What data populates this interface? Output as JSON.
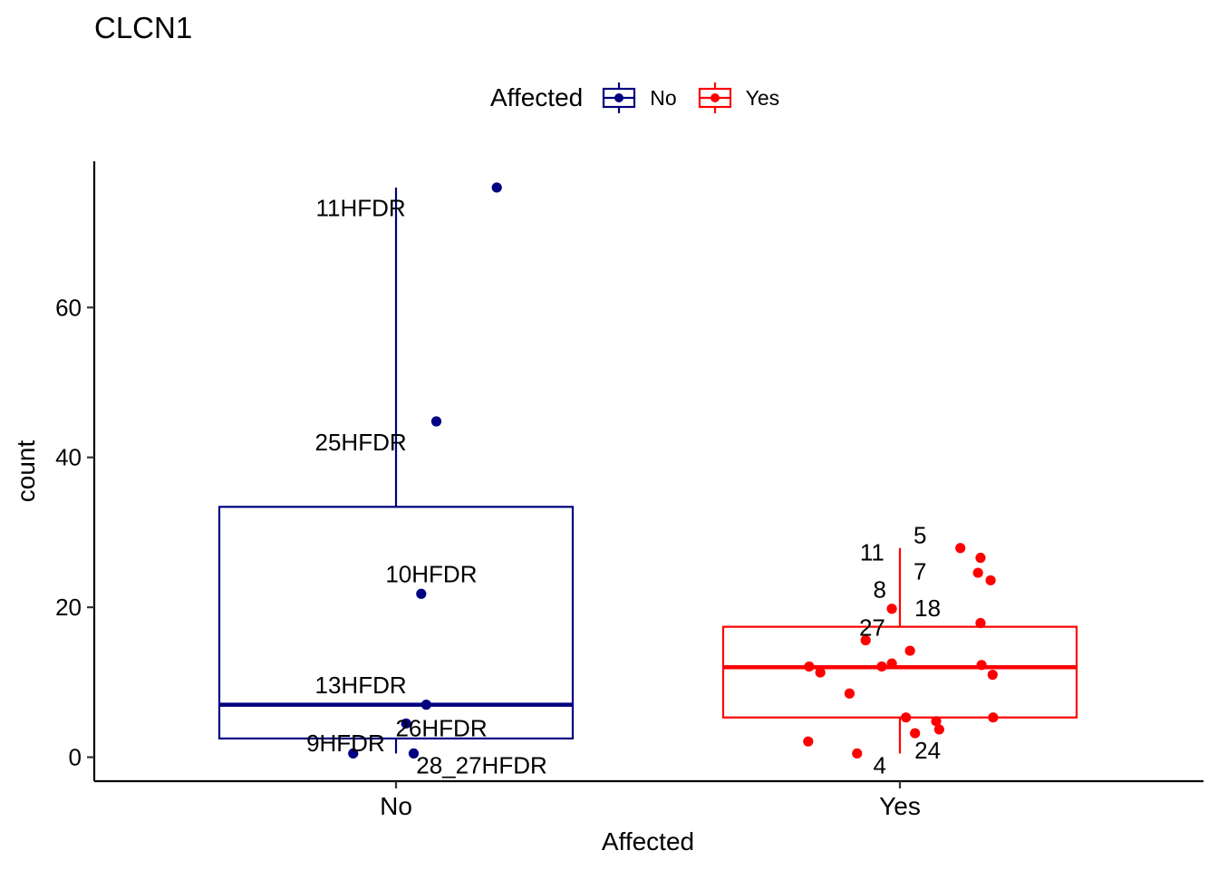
{
  "chart_data": {
    "type": "box",
    "title": "CLCN1",
    "xlabel": "Affected",
    "ylabel": "count",
    "categories": [
      "No",
      "Yes"
    ],
    "ylim": [
      -3.2,
      79.5
    ],
    "yticks": [
      0,
      20,
      40,
      60
    ],
    "grid": false,
    "legend": {
      "title": "Affected",
      "position": "top",
      "entries": [
        {
          "label": "No",
          "color": "#000080"
        },
        {
          "label": "Yes",
          "color": "#ff0000"
        }
      ]
    },
    "boxes": [
      {
        "category": "No",
        "color": "#000080",
        "lower_whisker": 0.5,
        "q1": 2.5,
        "median": 7,
        "q3": 33.4,
        "upper_whisker": 76
      },
      {
        "category": "Yes",
        "color": "#ff0000",
        "lower_whisker": 0.5,
        "q1": 5.3,
        "median": 12,
        "q3": 17.4,
        "upper_whisker": 27.9
      }
    ],
    "points": [
      {
        "group": "No",
        "jitter": 0.2,
        "y": 76
      },
      {
        "group": "No",
        "jitter": 0.08,
        "y": 44.8
      },
      {
        "group": "No",
        "jitter": 0.05,
        "y": 21.8
      },
      {
        "group": "No",
        "jitter": 0.06,
        "y": 7
      },
      {
        "group": "No",
        "jitter": 0.02,
        "y": 4.5
      },
      {
        "group": "No",
        "jitter": -0.085,
        "y": 0.5
      },
      {
        "group": "No",
        "jitter": 0.035,
        "y": 0.5
      },
      {
        "group": "Yes",
        "jitter": 0.12,
        "y": 27.9
      },
      {
        "group": "Yes",
        "jitter": 0.16,
        "y": 26.6
      },
      {
        "group": "Yes",
        "jitter": 0.155,
        "y": 24.6
      },
      {
        "group": "Yes",
        "jitter": 0.18,
        "y": 23.6
      },
      {
        "group": "Yes",
        "jitter": -0.016,
        "y": 19.8
      },
      {
        "group": "Yes",
        "jitter": 0.16,
        "y": 17.9
      },
      {
        "group": "Yes",
        "jitter": -0.068,
        "y": 15.6
      },
      {
        "group": "Yes",
        "jitter": 0.02,
        "y": 14.2
      },
      {
        "group": "Yes",
        "jitter": -0.016,
        "y": 12.5
      },
      {
        "group": "Yes",
        "jitter": 0.162,
        "y": 12.3
      },
      {
        "group": "Yes",
        "jitter": -0.036,
        "y": 12.1
      },
      {
        "group": "Yes",
        "jitter": -0.18,
        "y": 12.1
      },
      {
        "group": "Yes",
        "jitter": -0.158,
        "y": 11.3
      },
      {
        "group": "Yes",
        "jitter": 0.184,
        "y": 11
      },
      {
        "group": "Yes",
        "jitter": -0.1,
        "y": 8.5
      },
      {
        "group": "Yes",
        "jitter": 0.185,
        "y": 5.3
      },
      {
        "group": "Yes",
        "jitter": 0.012,
        "y": 5.3
      },
      {
        "group": "Yes",
        "jitter": 0.072,
        "y": 4.8
      },
      {
        "group": "Yes",
        "jitter": 0.078,
        "y": 3.7
      },
      {
        "group": "Yes",
        "jitter": 0.03,
        "y": 3.2
      },
      {
        "group": "Yes",
        "jitter": -0.182,
        "y": 2.1
      },
      {
        "group": "Yes",
        "jitter": -0.085,
        "y": 0.5
      }
    ],
    "annotations": [
      {
        "group": "No",
        "xoff": -0.07,
        "y": 73.3,
        "text": "11HFDR"
      },
      {
        "group": "No",
        "xoff": -0.07,
        "y": 42,
        "text": "25HFDR"
      },
      {
        "group": "No",
        "xoff": 0.07,
        "y": 24.4,
        "text": "10HFDR"
      },
      {
        "group": "No",
        "xoff": -0.07,
        "y": 9.6,
        "text": "13HFDR"
      },
      {
        "group": "No",
        "xoff": 0.09,
        "y": 3.9,
        "text": "26HFDR"
      },
      {
        "group": "No",
        "xoff": -0.1,
        "y": 1.9,
        "text": "9HFDR"
      },
      {
        "group": "No",
        "xoff": 0.17,
        "y": -1.1,
        "text": "28_27HFDR"
      },
      {
        "group": "Yes",
        "xoff": 0.04,
        "y": 29.6,
        "text": "5"
      },
      {
        "group": "Yes",
        "xoff": -0.055,
        "y": 27.3,
        "text": "11"
      },
      {
        "group": "Yes",
        "xoff": 0.04,
        "y": 24.8,
        "text": "7"
      },
      {
        "group": "Yes",
        "xoff": -0.04,
        "y": 22.4,
        "text": "8"
      },
      {
        "group": "Yes",
        "xoff": 0.055,
        "y": 19.9,
        "text": "18"
      },
      {
        "group": "Yes",
        "xoff": -0.055,
        "y": 17.3,
        "text": "27"
      },
      {
        "group": "Yes",
        "xoff": 0.055,
        "y": 0.9,
        "text": "24"
      },
      {
        "group": "Yes",
        "xoff": -0.04,
        "y": -1.1,
        "text": "4"
      }
    ]
  }
}
